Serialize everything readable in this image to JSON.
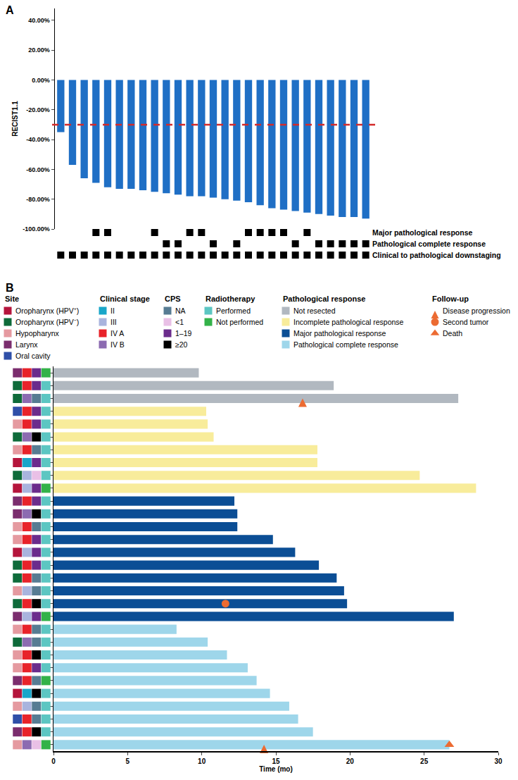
{
  "chart_data": [
    {
      "panel": "A",
      "type": "bar",
      "y_title": "RECIST1.1",
      "color": "#1f6fc5",
      "tick_labels": "y",
      "categories": [
        null,
        null,
        null,
        null,
        null,
        null,
        null,
        null,
        null,
        null,
        null,
        null,
        null,
        null,
        null,
        null,
        null,
        null,
        null,
        null,
        null,
        null,
        null,
        null,
        null,
        null,
        null
      ],
      "values": [
        -35,
        -57,
        -66,
        -69,
        -72,
        -73,
        -73,
        -74,
        -75,
        -76,
        -77,
        -78,
        -78,
        -79,
        -80,
        -81,
        -82,
        -84,
        -86,
        -87,
        -88,
        -89,
        -90,
        -91,
        -92,
        -92,
        -93
      ],
      "ylim": [
        -100,
        48
      ],
      "yticks": [
        {
          "value": 40,
          "label": "40.00%"
        },
        {
          "value": 20,
          "label": "20.00%"
        },
        {
          "value": 0,
          "label": "0.00%"
        },
        {
          "value": -20,
          "label": "-20.00%"
        },
        {
          "value": -40,
          "label": "-40.00%"
        },
        {
          "value": -60,
          "label": "-60.00%"
        },
        {
          "value": -80,
          "label": "-80.00%"
        },
        {
          "value": -100,
          "label": "-100.00%"
        }
      ],
      "reference_line": {
        "value": -30,
        "color": "#d42a2a",
        "line_style": "dash"
      },
      "indicators": [
        {
          "name": "Major pathological response",
          "color": "#000000",
          "values": [
            false,
            false,
            false,
            true,
            true,
            false,
            false,
            false,
            true,
            false,
            false,
            true,
            true,
            false,
            false,
            false,
            true,
            true,
            true,
            true,
            false,
            true,
            false,
            false,
            false,
            false,
            false
          ]
        },
        {
          "name": "Pathological complete response",
          "color": "#000000",
          "values": [
            false,
            false,
            false,
            false,
            false,
            false,
            false,
            false,
            false,
            true,
            true,
            false,
            false,
            true,
            false,
            true,
            false,
            false,
            false,
            false,
            true,
            false,
            true,
            true,
            true,
            true,
            true
          ]
        },
        {
          "name": "Clinical to pathological downstaging",
          "color": "#000000",
          "values": [
            true,
            true,
            true,
            true,
            true,
            true,
            true,
            true,
            true,
            true,
            true,
            true,
            true,
            true,
            true,
            true,
            true,
            true,
            true,
            true,
            true,
            true,
            true,
            true,
            true,
            true,
            true
          ]
        }
      ]
    },
    {
      "panel": "B",
      "type": "bar",
      "orientation": "horizontal",
      "x_title": "Time (mo)",
      "tick_labels": "x",
      "xlim": [
        0,
        30
      ],
      "xticks": [
        0,
        5,
        10,
        15,
        20,
        25,
        30
      ],
      "legend_groups": [
        {
          "title": "Site",
          "items": [
            {
              "label": "Oropharynx (HPV⁺)",
              "color": "#b5153c"
            },
            {
              "label": "Oropharynx (HPV⁻)",
              "color": "#0e6b3a"
            },
            {
              "label": "Hypopharynx",
              "color": "#e59aa0"
            },
            {
              "label": "Larynx",
              "color": "#7b2d6e"
            },
            {
              "label": "Oral cavity",
              "color": "#2f4fa8"
            }
          ]
        },
        {
          "title": "Clinical stage",
          "items": [
            {
              "label": "II",
              "color": "#19a6c9"
            },
            {
              "label": "III",
              "color": "#a9b4de"
            },
            {
              "label": "IV A",
              "color": "#e8232a"
            },
            {
              "label": "IV B",
              "color": "#8c6bb1"
            }
          ]
        },
        {
          "title": "CPS",
          "items": [
            {
              "label": "NA",
              "color": "#577c93"
            },
            {
              "label": "<1",
              "color": "#e9c0e6"
            },
            {
              "label": "1–19",
              "color": "#6b2c8c"
            },
            {
              "label": "≥20",
              "color": "#000000"
            }
          ]
        },
        {
          "title": "Radiotherapy",
          "items": [
            {
              "label": "Performed",
              "color": "#5cc6c2"
            },
            {
              "label": "Not performed",
              "color": "#33b249"
            }
          ]
        },
        {
          "title": "Pathological response",
          "items": [
            {
              "label": "Not resected",
              "color": "#b1b8c0"
            },
            {
              "label": "Incomplete pathological response",
              "color": "#f8ec9b"
            },
            {
              "label": "Major pathological response",
              "color": "#0b4e95"
            },
            {
              "label": "Pathological complete response",
              "color": "#9ed6ea"
            }
          ]
        },
        {
          "title": "Follow-up",
          "items": [
            {
              "label": "Disease progression",
              "color": "#ec6b32",
              "marker": "arrow-up"
            },
            {
              "label": "Second tumor",
              "color": "#ec6b32",
              "marker": "circle"
            },
            {
              "label": "Death",
              "color": "#ec6b32",
              "marker": "triangle-up"
            }
          ]
        }
      ],
      "patients": [
        {
          "squares": [
            "Larynx",
            "IV A",
            "1–19",
            "Not performed"
          ],
          "response": "Not resected",
          "months": 9.8,
          "events": []
        },
        {
          "squares": [
            "Oropharynx (HPV⁻)",
            "IV A",
            "1–19",
            "Performed"
          ],
          "response": "Not resected",
          "months": 18.9,
          "events": []
        },
        {
          "squares": [
            "Oropharynx (HPV⁻)",
            "IV B",
            "NA",
            "Performed"
          ],
          "response": "Not resected",
          "months": 27.3,
          "events": [
            {
              "type": "Disease progression",
              "time": 16.8
            }
          ]
        },
        {
          "squares": [
            "Oral cavity",
            "IV A",
            "1–19",
            "Performed"
          ],
          "response": "Incomplete pathological response",
          "months": 10.3,
          "events": []
        },
        {
          "squares": [
            "Hypopharynx",
            "IV A",
            "1–19",
            "Performed"
          ],
          "response": "Incomplete pathological response",
          "months": 10.4,
          "events": []
        },
        {
          "squares": [
            "Oropharynx (HPV⁻)",
            "IV B",
            "≥20",
            "Performed"
          ],
          "response": "Incomplete pathological response",
          "months": 10.8,
          "events": []
        },
        {
          "squares": [
            "Hypopharynx",
            "IV A",
            "NA",
            "Performed"
          ],
          "response": "Incomplete pathological response",
          "months": 17.8,
          "events": []
        },
        {
          "squares": [
            "Oropharynx (HPV⁺)",
            "II",
            "1–19",
            "Performed"
          ],
          "response": "Incomplete pathological response",
          "months": 17.8,
          "events": []
        },
        {
          "squares": [
            "Oropharynx (HPV⁻)",
            "III",
            "<1",
            "Performed"
          ],
          "response": "Incomplete pathological response",
          "months": 24.7,
          "events": []
        },
        {
          "squares": [
            "Oropharynx (HPV⁺)",
            "III",
            "1–19",
            "Not performed"
          ],
          "response": "Incomplete pathological response",
          "months": 28.5,
          "events": []
        },
        {
          "squares": [
            "Larynx",
            "IV A",
            "1–19",
            "Performed"
          ],
          "response": "Major pathological response",
          "months": 12.2,
          "events": []
        },
        {
          "squares": [
            "Larynx",
            "IV B",
            "≥20",
            "Performed"
          ],
          "response": "Major pathological response",
          "months": 12.4,
          "events": []
        },
        {
          "squares": [
            "Hypopharynx",
            "IV A",
            "NA",
            "Performed"
          ],
          "response": "Major pathological response",
          "months": 12.4,
          "events": []
        },
        {
          "squares": [
            "Hypopharynx",
            "IV A",
            "1–19",
            "Performed"
          ],
          "response": "Major pathological response",
          "months": 14.8,
          "events": []
        },
        {
          "squares": [
            "Oropharynx (HPV⁺)",
            "III",
            "1–19",
            "Performed"
          ],
          "response": "Major pathological response",
          "months": 16.3,
          "events": []
        },
        {
          "squares": [
            "Oropharynx (HPV⁻)",
            "IV A",
            "1–19",
            "Performed"
          ],
          "response": "Major pathological response",
          "months": 17.9,
          "events": []
        },
        {
          "squares": [
            "Oropharynx (HPV⁻)",
            "IV A",
            "NA",
            "Performed"
          ],
          "response": "Major pathological response",
          "months": 19.1,
          "events": []
        },
        {
          "squares": [
            "Hypopharynx",
            "III",
            "NA",
            "Performed"
          ],
          "response": "Major pathological response",
          "months": 19.6,
          "events": []
        },
        {
          "squares": [
            "Oropharynx (HPV⁻)",
            "IV A",
            "≥20",
            "Performed"
          ],
          "response": "Major pathological response",
          "months": 19.8,
          "events": [
            {
              "type": "Second tumor",
              "time": 11.6
            }
          ]
        },
        {
          "squares": [
            "Larynx",
            "III",
            "1–19",
            "Not performed"
          ],
          "response": "Major pathological response",
          "months": 27.0,
          "events": []
        },
        {
          "squares": [
            "Hypopharynx",
            "IV A",
            "NA",
            "Performed"
          ],
          "response": "Pathological complete response",
          "months": 8.3,
          "events": []
        },
        {
          "squares": [
            "Oropharynx (HPV⁻)",
            "IV B",
            "NA",
            "Performed"
          ],
          "response": "Pathological complete response",
          "months": 10.4,
          "events": []
        },
        {
          "squares": [
            "Hypopharynx",
            "IV A",
            "≥20",
            "Performed"
          ],
          "response": "Pathological complete response",
          "months": 11.7,
          "events": []
        },
        {
          "squares": [
            "Hypopharynx",
            "IV A",
            "1–19",
            "Performed"
          ],
          "response": "Pathological complete response",
          "months": 13.1,
          "events": []
        },
        {
          "squares": [
            "Larynx",
            "IV A",
            "NA",
            "Not performed"
          ],
          "response": "Pathological complete response",
          "months": 13.7,
          "events": []
        },
        {
          "squares": [
            "Oropharynx (HPV⁺)",
            "II",
            "≥20",
            "Performed"
          ],
          "response": "Pathological complete response",
          "months": 14.6,
          "events": []
        },
        {
          "squares": [
            "Hypopharynx",
            "III",
            "NA",
            "Performed"
          ],
          "response": "Pathological complete response",
          "months": 15.9,
          "events": []
        },
        {
          "squares": [
            "Oral cavity",
            "IV A",
            "NA",
            "Performed"
          ],
          "response": "Pathological complete response",
          "months": 16.5,
          "events": []
        },
        {
          "squares": [
            "Larynx",
            "IV A",
            "≥20",
            "Performed"
          ],
          "response": "Pathological complete response",
          "months": 17.5,
          "events": []
        },
        {
          "squares": [
            "Hypopharynx",
            "IV B",
            "<1",
            "Not performed"
          ],
          "response": "Pathological complete response",
          "months": 26.7,
          "events": [
            {
              "type": "Disease progression",
              "time": 14.2
            },
            {
              "type": "Death",
              "time": 26.7
            }
          ]
        }
      ]
    }
  ]
}
